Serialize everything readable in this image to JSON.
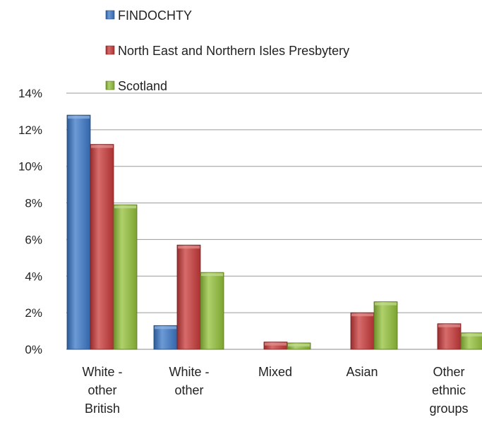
{
  "chart_data": {
    "type": "bar",
    "categories": [
      [
        "White -",
        "other",
        "British"
      ],
      [
        "White -",
        "other"
      ],
      [
        "Mixed"
      ],
      [
        "Asian"
      ],
      [
        "Other",
        "ethnic",
        "groups"
      ]
    ],
    "series": [
      {
        "name": "FINDOCHTY",
        "color": "#3b78c8",
        "values": [
          12.8,
          1.3,
          0,
          0,
          0
        ]
      },
      {
        "name": "North East and Northern Isles Presbytery",
        "color": "#c93a3a",
        "values": [
          11.2,
          5.7,
          0.4,
          2.0,
          1.4
        ]
      },
      {
        "name": "Scotland",
        "color": "#93c13a",
        "values": [
          7.9,
          4.2,
          0.35,
          2.6,
          0.9
        ]
      }
    ],
    "ylim": [
      0,
      14
    ],
    "yticks": [
      "0%",
      "2%",
      "4%",
      "6%",
      "8%",
      "10%",
      "12%",
      "14%"
    ],
    "grid": true,
    "legend_position": "top"
  }
}
